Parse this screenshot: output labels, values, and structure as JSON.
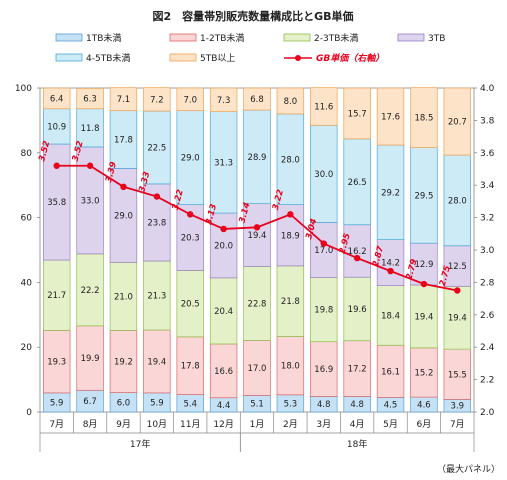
{
  "chart_data": {
    "type": "bar",
    "stacked": true,
    "title": "図2　容量帯別販売数量構成比とGB単価",
    "source_note": "（最大パネル）",
    "categories": [
      "7月",
      "8月",
      "9月",
      "10月",
      "11月",
      "12月",
      "1月",
      "2月",
      "3月",
      "4月",
      "5月",
      "6月",
      "7月"
    ],
    "year_groups": [
      {
        "label": "17年",
        "start": 0,
        "end": 5
      },
      {
        "label": "18年",
        "start": 6,
        "end": 12
      }
    ],
    "ylim": [
      0,
      100
    ],
    "y_ticks": [
      0,
      20,
      40,
      60,
      80,
      100
    ],
    "y2lim": [
      2.0,
      4.0
    ],
    "y2_ticks": [
      "2.0",
      "2.2",
      "2.4",
      "2.6",
      "2.8",
      "3.0",
      "3.2",
      "3.4",
      "3.6",
      "3.8",
      "4.0"
    ],
    "series": [
      {
        "name": "1TB未満",
        "color": "#c5e1f5",
        "border": "#5a9fd4",
        "values": [
          5.9,
          6.7,
          6.0,
          5.9,
          5.4,
          4.4,
          5.1,
          5.3,
          4.8,
          4.8,
          4.5,
          4.6,
          3.9
        ]
      },
      {
        "name": "1-2TB未満",
        "color": "#fbd6d6",
        "border": "#e06666",
        "values": [
          19.3,
          19.9,
          19.2,
          19.4,
          17.8,
          16.6,
          17.0,
          18.0,
          16.9,
          17.2,
          16.1,
          15.2,
          15.5
        ]
      },
      {
        "name": "2-3TB未満",
        "color": "#e3f0c8",
        "border": "#8fbf4a",
        "values": [
          21.7,
          22.2,
          21.0,
          21.3,
          20.5,
          20.4,
          22.8,
          21.8,
          19.8,
          19.6,
          18.4,
          19.4,
          19.4
        ]
      },
      {
        "name": "3TB",
        "color": "#ddd3ec",
        "border": "#9b7fc4",
        "values": [
          35.8,
          33.0,
          29.0,
          23.8,
          20.3,
          20.0,
          19.4,
          18.9,
          17.0,
          16.2,
          14.2,
          12.9,
          12.5
        ]
      },
      {
        "name": "4-5TB未満",
        "color": "#cdeaf7",
        "border": "#4aa8d8",
        "values": [
          10.9,
          11.8,
          17.8,
          22.5,
          29.0,
          31.3,
          28.9,
          28.0,
          30.0,
          26.5,
          29.2,
          29.5,
          28.0
        ]
      },
      {
        "name": "5TB以上",
        "color": "#fde3c8",
        "border": "#f0a050",
        "values": [
          6.4,
          6.3,
          7.1,
          7.2,
          7.0,
          7.3,
          6.8,
          8.0,
          11.6,
          15.7,
          17.6,
          18.5,
          20.7
        ]
      }
    ],
    "line_series": {
      "name": "GB単価（右軸）",
      "color": "#e8001c",
      "axis": "right",
      "values": [
        3.52,
        3.52,
        3.39,
        3.33,
        3.22,
        3.13,
        3.14,
        3.22,
        3.04,
        2.95,
        2.87,
        2.79,
        2.75
      ]
    },
    "legend_position": "top",
    "grid": false
  }
}
